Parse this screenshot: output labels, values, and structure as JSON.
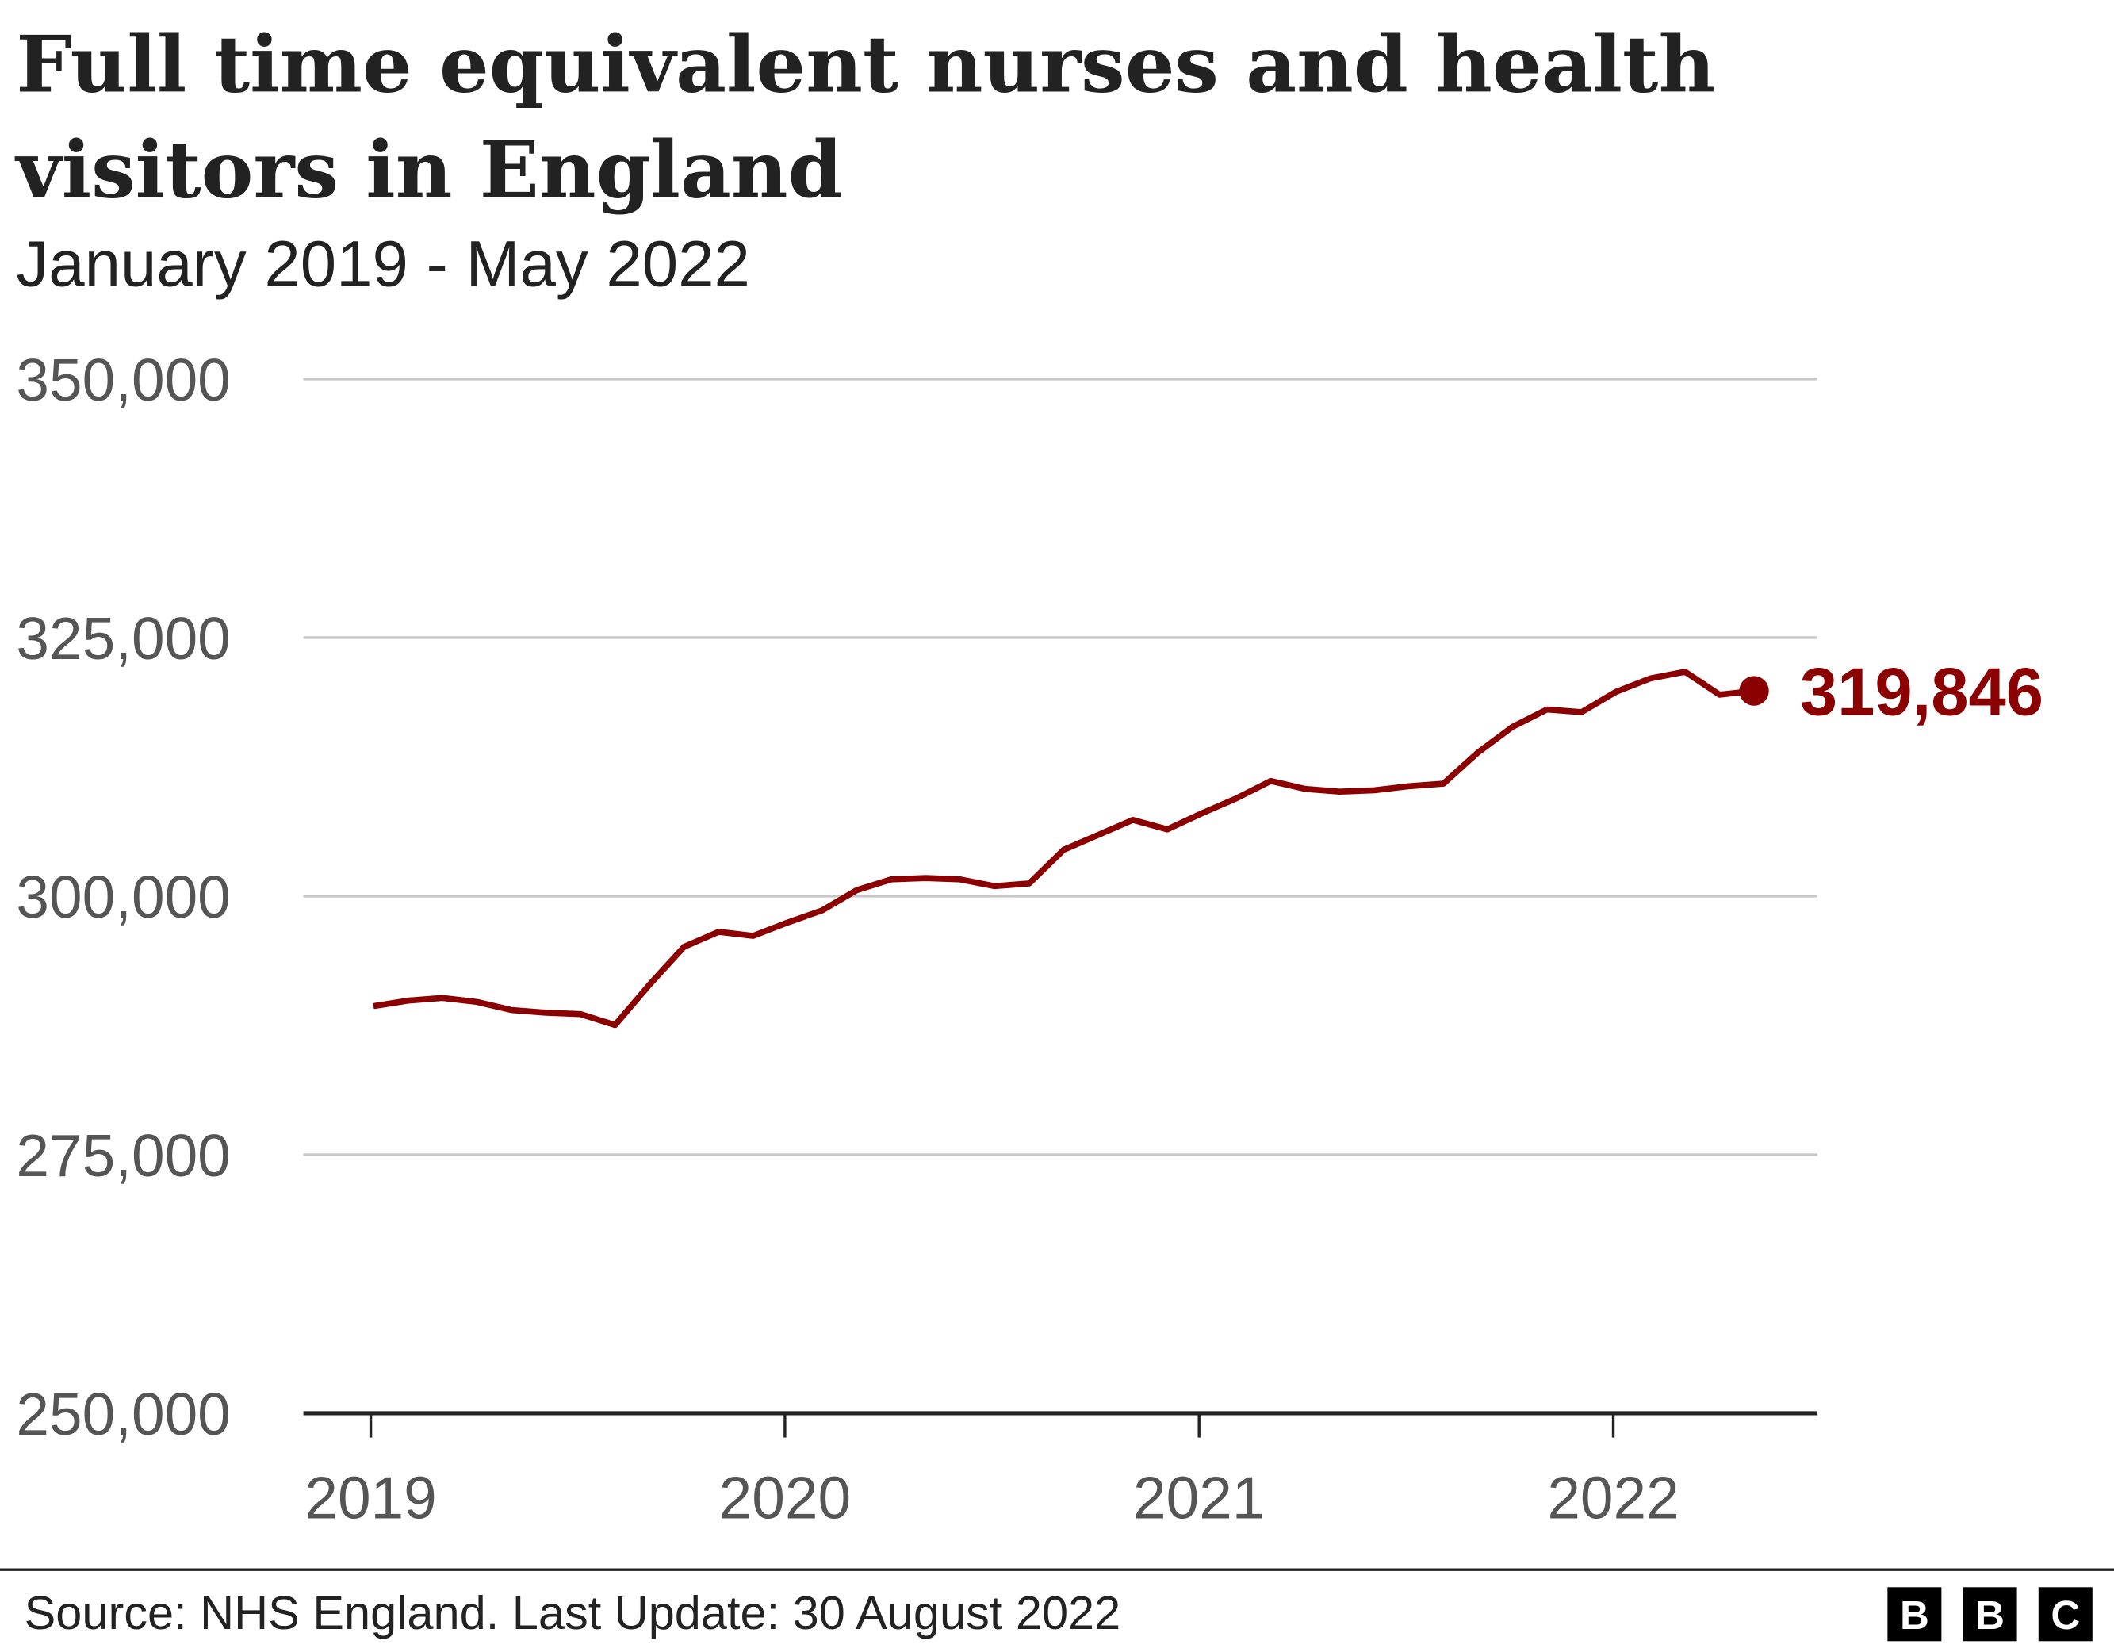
{
  "chart_data": {
    "type": "line",
    "title": "Full time equivalent nurses and health visitors in England",
    "title_lines": [
      "Full time equivalent nurses and health",
      "visitors in England"
    ],
    "subtitle": "January 2019 - May 2022",
    "xlabel": "",
    "ylabel": "",
    "ylim": [
      250000,
      350000
    ],
    "yticks": [
      250000,
      275000,
      300000,
      325000,
      350000
    ],
    "ytick_labels": [
      "250,000",
      "275,000",
      "300,000",
      "325,000",
      "350,000"
    ],
    "xticks": [
      2019,
      2020,
      2021,
      2022
    ],
    "xtick_labels": [
      "2019",
      "2020",
      "2021",
      "2022"
    ],
    "x_start": "2019-01",
    "x_end": "2022-05",
    "grid": true,
    "legend": "none",
    "series": [
      {
        "name": "FTE nurses and health visitors",
        "color": "#8b0000",
        "values": [
          289364,
          289900,
          290150,
          289760,
          288980,
          288720,
          288590,
          287540,
          291450,
          295100,
          296540,
          296150,
          297450,
          298620,
          300580,
          301620,
          301750,
          301620,
          300970,
          301230,
          304490,
          305920,
          307360,
          306450,
          308010,
          309450,
          311140,
          310360,
          310100,
          310230,
          310620,
          310880,
          313880,
          316360,
          318050,
          317790,
          319750,
          321050,
          321700,
          319480,
          319846
        ]
      }
    ],
    "end_label": "319,846"
  },
  "footer": {
    "source": "Source: NHS England. Last Update: 30 August 2022",
    "logo_letters": [
      "B",
      "B",
      "C"
    ]
  }
}
